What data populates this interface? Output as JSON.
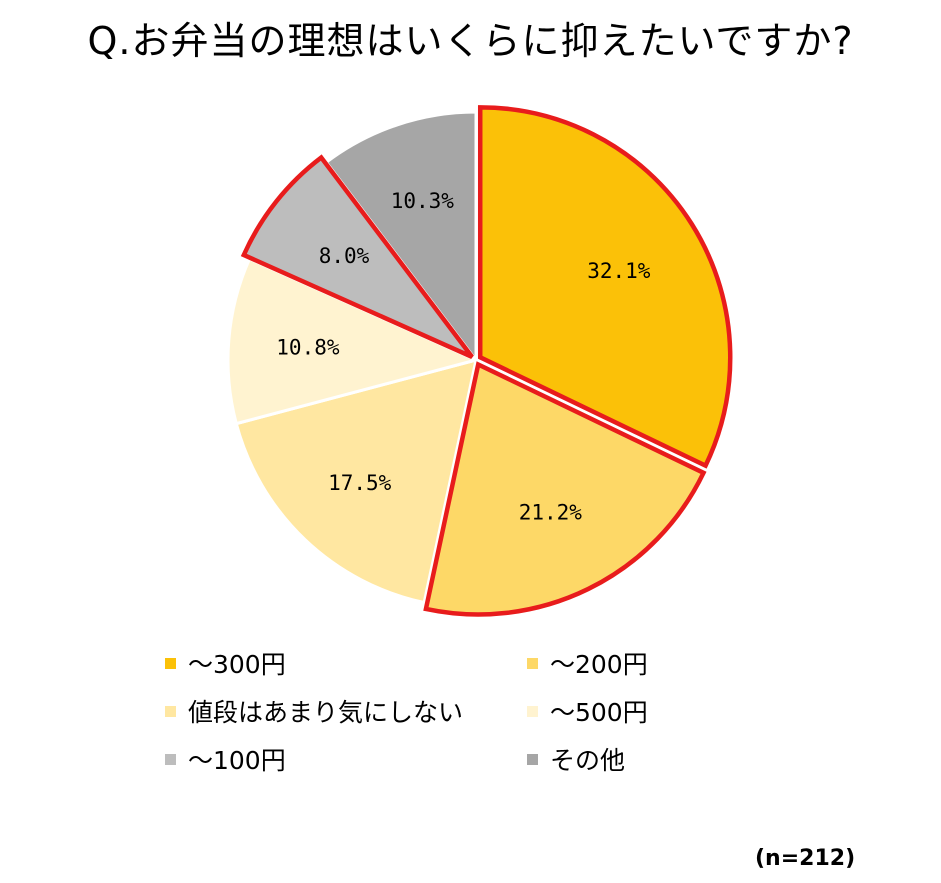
{
  "title": "Q.お弁当の理想はいくらに抑えたいですか?",
  "sample_size": "(n=212)",
  "chart_data": {
    "type": "pie",
    "title": "Q.お弁当の理想はいくらに抑えたいですか?",
    "slices": [
      {
        "name": "〜300円",
        "value": 32.1,
        "label": "32.1%",
        "color": "#FBC108",
        "highlight": true
      },
      {
        "name": "〜200円",
        "value": 21.2,
        "label": "21.2%",
        "color": "#FDD867",
        "highlight": true
      },
      {
        "name": "値段はあまり気にしない",
        "value": 17.5,
        "label": "17.5%",
        "color": "#FFE7A1",
        "highlight": false
      },
      {
        "name": "〜500円",
        "value": 10.8,
        "label": "10.8%",
        "color": "#FFF3D0",
        "highlight": false
      },
      {
        "name": "〜100円",
        "value": 8.0,
        "label": "8.0%",
        "color": "#BDBDBD",
        "highlight": true
      },
      {
        "name": "その他",
        "value": 10.3,
        "label": "10.3%",
        "color": "#A6A6A6",
        "highlight": false
      }
    ],
    "highlight_color": "#E81C1C",
    "legend_order": [
      "〜300円",
      "〜200円",
      "値段はあまり気にしない",
      "〜500円",
      "〜100円",
      "その他"
    ]
  }
}
